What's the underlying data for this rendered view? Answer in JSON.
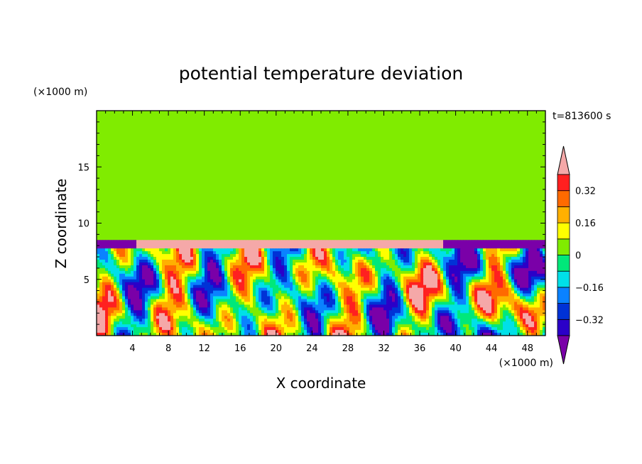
{
  "chart_data": {
    "type": "heatmap",
    "title": "potential temperature deviation",
    "time_label": "t=813600 s",
    "xlabel": "X coordinate",
    "ylabel": "Z coordinate",
    "x_unit": "(×1000 m)",
    "y_unit": "(×1000 m)",
    "xlim": [
      0,
      50
    ],
    "ylim": [
      0,
      20
    ],
    "x_ticks": [
      4,
      8,
      12,
      16,
      20,
      24,
      28,
      32,
      36,
      40,
      44,
      48
    ],
    "y_ticks": [
      5,
      10,
      15
    ],
    "colorbar": {
      "levels": [
        -0.4,
        -0.32,
        -0.24,
        -0.16,
        -0.08,
        0,
        0.08,
        0.16,
        0.24,
        0.32,
        0.4
      ],
      "tick_labels": [
        "0.32",
        "0.16",
        "0",
        "−0.16",
        "−0.32"
      ],
      "tick_values": [
        0.32,
        0.16,
        0,
        -0.16,
        -0.32
      ],
      "colors_low_to_high": [
        "#7a00a8",
        "#2b00c8",
        "#0032d6",
        "#0a82ff",
        "#00e0e8",
        "#00e87a",
        "#80ec00",
        "#ffff00",
        "#ffb000",
        "#ff6a00",
        "#ff2020",
        "#f5a8a8"
      ],
      "extend": "both"
    },
    "description_regions": {
      "upper_layer_z_range": [
        9,
        20
      ],
      "upper_layer_values": [
        0,
        0.08
      ],
      "inversion_height": 9,
      "boundary_layer_z_range": [
        0,
        9
      ]
    }
  }
}
